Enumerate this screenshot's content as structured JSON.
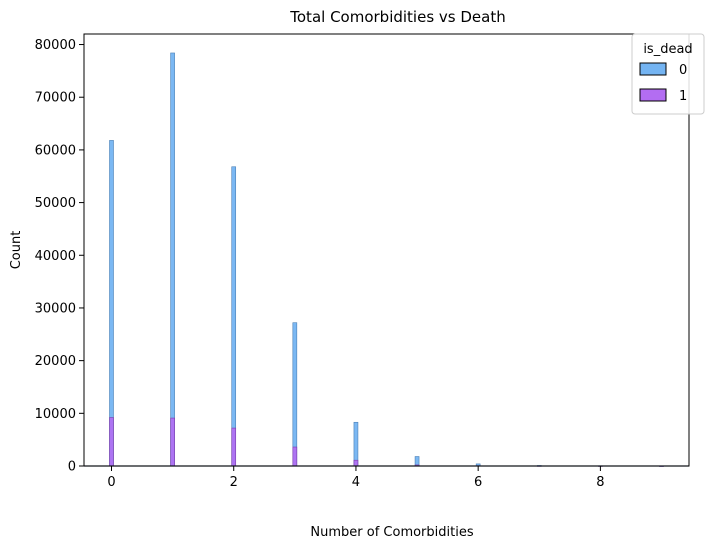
{
  "chart_data": {
    "type": "bar",
    "title": "Total Comorbidities vs Death",
    "xlabel": "Number of Comorbidities",
    "ylabel": "Count",
    "xlim": [
      -0.45,
      9.45
    ],
    "ylim": [
      0,
      82000
    ],
    "x_ticks": [
      0,
      2,
      4,
      6,
      8
    ],
    "y_ticks": [
      0,
      10000,
      20000,
      30000,
      40000,
      50000,
      60000,
      70000,
      80000
    ],
    "x_tick_labels": [
      "0",
      "2",
      "4",
      "6",
      "8"
    ],
    "y_tick_labels": [
      "0",
      "10000",
      "20000",
      "30000",
      "40000",
      "50000",
      "60000",
      "70000",
      "80000"
    ],
    "grid": false,
    "stacked": false,
    "legend": {
      "title": "is_dead",
      "position": "top-right"
    },
    "categories": [
      0,
      1,
      2,
      3,
      4,
      5,
      6,
      7,
      8,
      9
    ],
    "series": [
      {
        "name": "0",
        "color": "#74b4f2",
        "edge": "#4a7fb5",
        "values": [
          61800,
          78400,
          56800,
          27200,
          8300,
          1800,
          400,
          100,
          50,
          20
        ]
      },
      {
        "name": "1",
        "color": "#b36df2",
        "edge": "#7a3cad",
        "values": [
          9200,
          9100,
          7200,
          3600,
          1100,
          200,
          60,
          20,
          10,
          5
        ]
      }
    ]
  }
}
